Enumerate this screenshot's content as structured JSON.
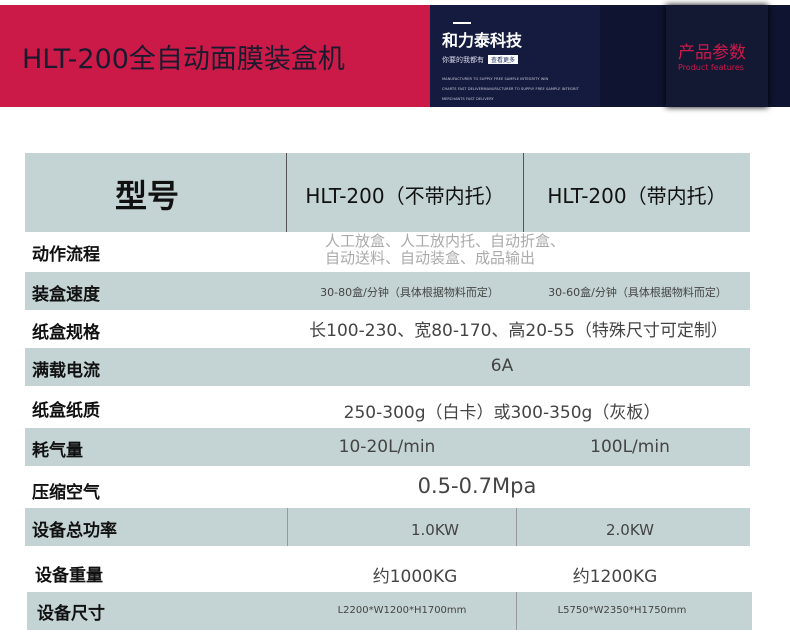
{
  "banner": {
    "title": "HLT-200全自动面膜装盒机",
    "brand": "和力泰科技",
    "slogan": "你要的我都有",
    "more_button": "查看更多",
    "tagline": [
      "MANUFACTURER TO SUPPLY FREE SAMPLE INTEGRITY WIN",
      "CHARTS FAST DELIVERMANUFACTURER TO SUPPLY FREE SAMPLE INTEGRIT",
      "MERCHANTS FAST DELIVERY"
    ],
    "section_cn": "产品参数",
    "section_en": "Product features"
  },
  "colors": {
    "accent": "#cc1a48",
    "navy": "#141b3e",
    "row_gray": "#c4d3d3"
  },
  "table": {
    "header": {
      "label": "型号",
      "col1": "HLT-200（不带内托）",
      "col2": "HLT-200（带内托）"
    },
    "rows": [
      {
        "label": "动作流程",
        "line1": "人工放盒、人工放内托、自动折盒、",
        "line2": "自动送料、自动装盒、成品输出"
      },
      {
        "label": "装盒速度",
        "col1": "30-80盒/分钟（具体根据物料而定）",
        "col2": "30-60盒/分钟（具体根据物料而定）"
      },
      {
        "label": "纸盒规格",
        "value": "长100-230、宽80-170、高20-55（特殊尺寸可定制）"
      },
      {
        "label": "满载电流",
        "value": "6A"
      },
      {
        "label": "纸盒纸质",
        "value": "250-300g（白卡）或300-350g（灰板）"
      },
      {
        "label": "耗气量",
        "col1": "10-20L/min",
        "col2": "100L/min"
      },
      {
        "label": "压缩空气",
        "value": "0.5-0.7Mpa"
      },
      {
        "label": "设备总功率",
        "col1": "1.0KW",
        "col2": "2.0KW"
      },
      {
        "label": "设备重量",
        "col1": "约1000KG",
        "col2": "约1200KG"
      },
      {
        "label": "设备尺寸",
        "col1": "L2200*W1200*H1700mm",
        "col2": "L5750*W2350*H1750mm"
      }
    ]
  }
}
